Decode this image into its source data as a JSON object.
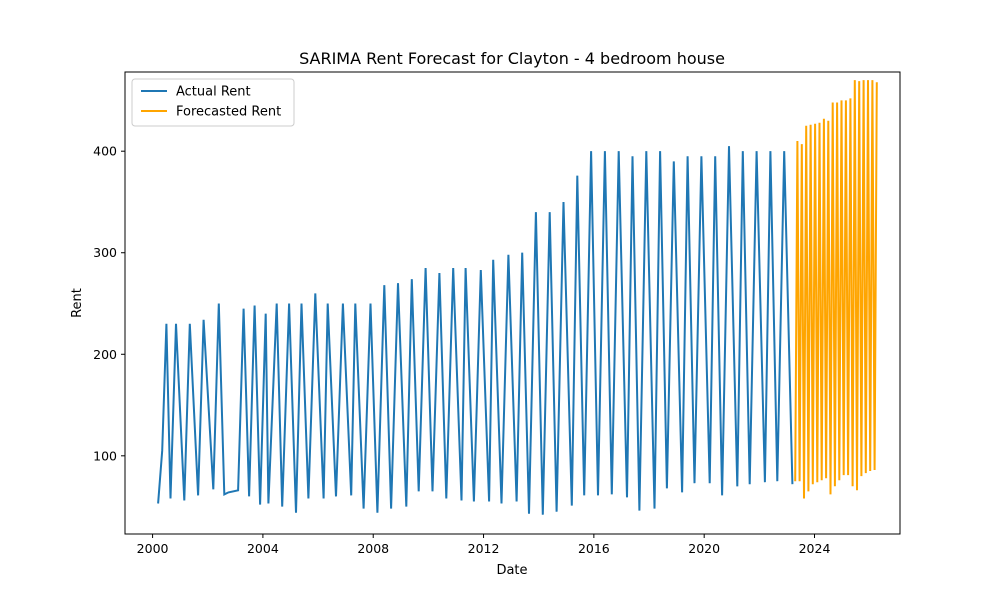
{
  "chart_data": {
    "type": "line",
    "title": "SARIMA Rent Forecast for Clayton - 4 bedroom house",
    "xlabel": "Date",
    "ylabel": "Rent",
    "xlim": [
      1999.0,
      2027.1
    ],
    "ylim": [
      23,
      478
    ],
    "x_ticks": [
      2000,
      2004,
      2008,
      2012,
      2016,
      2020,
      2024
    ],
    "y_ticks": [
      100,
      200,
      300,
      400
    ],
    "grid": false,
    "legend_position": "top-left",
    "series": [
      {
        "name": "Actual Rent",
        "color": "#1f77b4",
        "x": [
          2000.2,
          2000.35,
          2000.5,
          2000.65,
          2000.85,
          2001.15,
          2001.35,
          2001.65,
          2001.85,
          2002.2,
          2002.4,
          2002.6,
          2002.75,
          2003.1,
          2003.3,
          2003.5,
          2003.7,
          2003.9,
          2004.1,
          2004.2,
          2004.5,
          2004.7,
          2004.95,
          2005.2,
          2005.4,
          2005.65,
          2005.9,
          2006.2,
          2006.35,
          2006.65,
          2006.9,
          2007.2,
          2007.35,
          2007.65,
          2007.9,
          2008.15,
          2008.4,
          2008.65,
          2008.9,
          2009.2,
          2009.4,
          2009.65,
          2009.9,
          2010.15,
          2010.4,
          2010.65,
          2010.9,
          2011.2,
          2011.35,
          2011.65,
          2011.9,
          2012.2,
          2012.35,
          2012.65,
          2012.9,
          2013.2,
          2013.4,
          2013.65,
          2013.9,
          2014.15,
          2014.4,
          2014.65,
          2014.9,
          2015.2,
          2015.4,
          2015.65,
          2015.9,
          2016.15,
          2016.4,
          2016.65,
          2016.9,
          2017.2,
          2017.4,
          2017.65,
          2017.9,
          2018.2,
          2018.4,
          2018.65,
          2018.9,
          2019.2,
          2019.4,
          2019.65,
          2019.9,
          2020.2,
          2020.4,
          2020.65,
          2020.9,
          2021.2,
          2021.4,
          2021.65,
          2021.9,
          2022.2,
          2022.4,
          2022.65,
          2022.9,
          2023.2
        ],
        "y": [
          53,
          105,
          230,
          58,
          230,
          56,
          230,
          61,
          234,
          67,
          250,
          62,
          64,
          66,
          245,
          60,
          248,
          52,
          240,
          53,
          250,
          50,
          250,
          44,
          250,
          58,
          260,
          58,
          250,
          60,
          250,
          61,
          250,
          48,
          250,
          44,
          268,
          48,
          270,
          50,
          274,
          65,
          285,
          65,
          280,
          58,
          285,
          56,
          285,
          55,
          283,
          55,
          293,
          53,
          298,
          55,
          300,
          43,
          340,
          42,
          340,
          45,
          350,
          51,
          376,
          61,
          400,
          61,
          400,
          62,
          400,
          59,
          395,
          46,
          400,
          48,
          400,
          68,
          390,
          64,
          395,
          73,
          395,
          73,
          395,
          61,
          405,
          70,
          400,
          72,
          400,
          74,
          400,
          75,
          400,
          72
        ]
      },
      {
        "name": "Forecasted Rent",
        "color": "#ffa500",
        "x": [
          2023.3,
          2023.38,
          2023.46,
          2023.54,
          2023.62,
          2023.7,
          2023.78,
          2023.86,
          2023.94,
          2024.02,
          2024.1,
          2024.18,
          2024.26,
          2024.34,
          2024.42,
          2024.5,
          2024.58,
          2024.66,
          2024.74,
          2024.82,
          2024.9,
          2024.98,
          2025.06,
          2025.14,
          2025.22,
          2025.3,
          2025.38,
          2025.46,
          2025.54,
          2025.62,
          2025.7,
          2025.78,
          2025.86,
          2025.94,
          2026.02,
          2026.1,
          2026.18,
          2026.26
        ],
        "y": [
          75,
          410,
          75,
          407,
          58,
          425,
          65,
          426,
          72,
          427,
          74,
          428,
          76,
          432,
          78,
          430,
          62,
          448,
          70,
          448,
          76,
          450,
          81,
          450,
          81,
          452,
          70,
          470,
          66,
          469,
          80,
          470,
          83,
          470,
          85,
          470,
          86,
          468
        ]
      }
    ]
  }
}
